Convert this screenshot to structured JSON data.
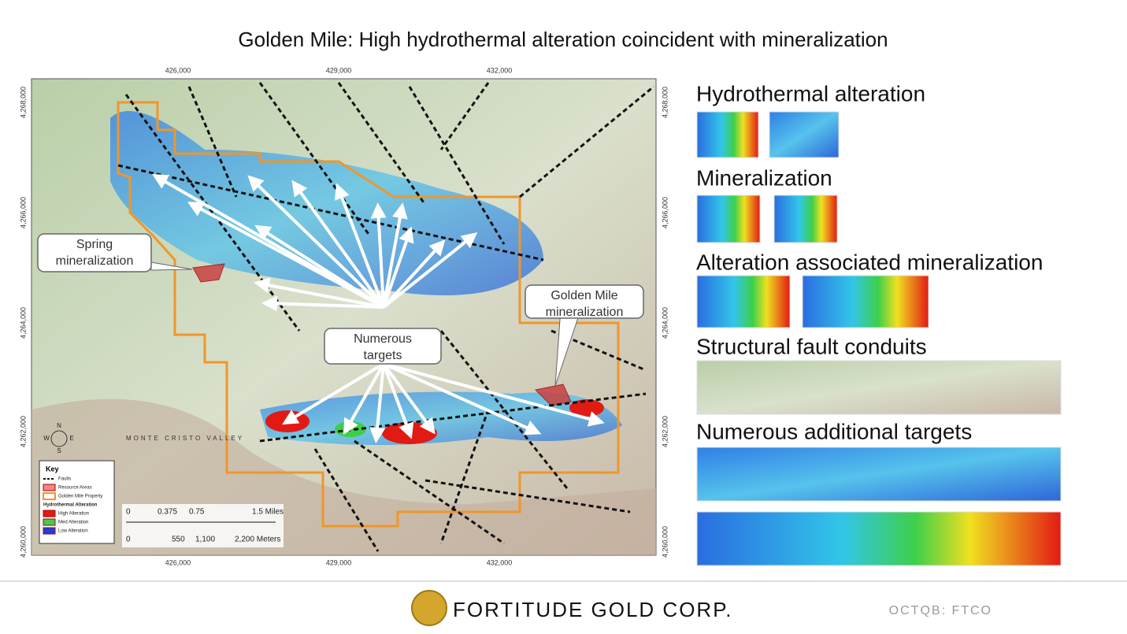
{
  "header": {
    "title": "Golden Mile: High hydrothermal alteration coincident with mineralization"
  },
  "map": {
    "x_labels_top": [
      "426,000",
      "429,000",
      "432,000"
    ],
    "x_labels_bottom": [
      "426,000",
      "429,000",
      "432,000"
    ],
    "y_labels_left": [
      "4,268,000",
      "4,266,000",
      "4,264,000",
      "4,262,000",
      "4,260,000"
    ],
    "y_labels_right": [
      "4,268,000",
      "4,266,000",
      "4,264,000",
      "4,262,000",
      "4,260,000"
    ],
    "callouts": [
      {
        "lines": [
          "Spring",
          "mineralization"
        ]
      },
      {
        "lines": [
          "Numerous",
          "targets"
        ]
      },
      {
        "lines": [
          "Golden Mile",
          "mineralization"
        ]
      }
    ],
    "place_label": "MONTE CRISTO VALLEY",
    "compass": [
      "N",
      "S",
      "E",
      "W"
    ],
    "key": {
      "title": "Key",
      "items": [
        "Faults",
        "Resource Areas",
        "Golden Mile Property",
        "Hydrothermal Alteration",
        "High Alteration",
        "Med Alteration",
        "Low Alteration"
      ]
    },
    "scale": {
      "miles": [
        "0",
        "0.375",
        "0.75",
        "1.5 Miles"
      ],
      "meters": [
        "0",
        "550",
        "1,100",
        "2,200 Meters"
      ]
    }
  },
  "panels": [
    "Hydrothermal alteration",
    "Mineralization",
    "Alteration associated mineralization",
    "Structural fault conduits",
    "Numerous additional targets"
  ],
  "footer": {
    "company": "FORTITUDE GOLD CORP.",
    "ticker": "OCTQB: FTCO"
  }
}
